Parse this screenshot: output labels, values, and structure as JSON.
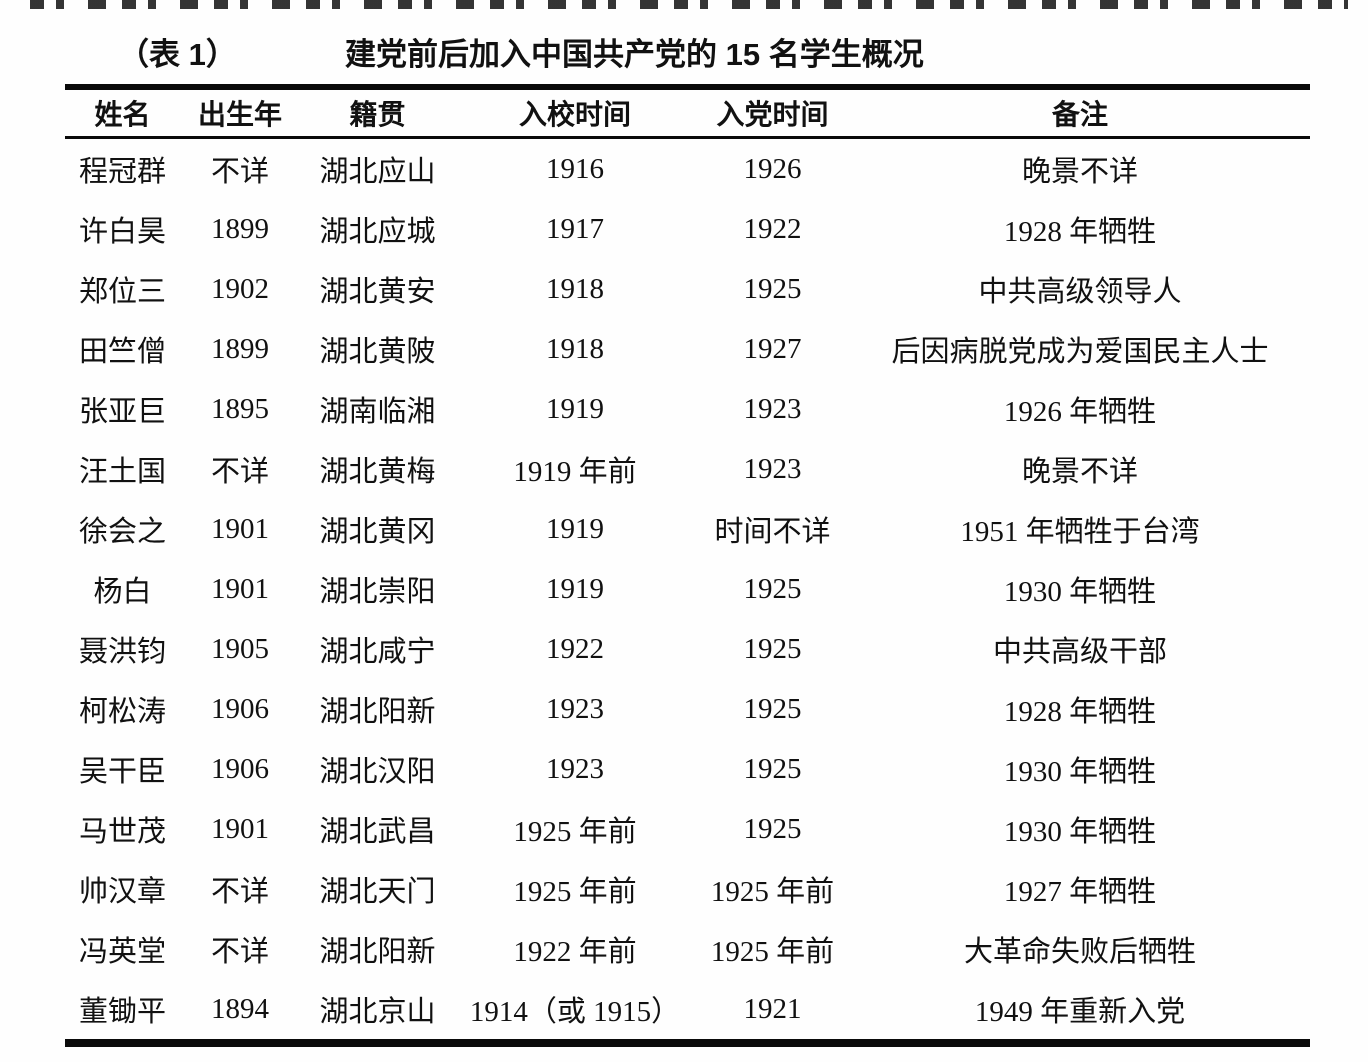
{
  "caption": {
    "label": "（表 1）",
    "title": "建党前后加入中国共产党的 15 名学生概况"
  },
  "table": {
    "columns": [
      "姓名",
      "出生年",
      "籍贯",
      "入校时间",
      "入党时间",
      "备注"
    ],
    "rows": [
      [
        "程冠群",
        "不详",
        "湖北应山",
        "1916",
        "1926",
        "晚景不详"
      ],
      [
        "许白昊",
        "1899",
        "湖北应城",
        "1917",
        "1922",
        "1928 年牺牲"
      ],
      [
        "郑位三",
        "1902",
        "湖北黄安",
        "1918",
        "1925",
        "中共高级领导人"
      ],
      [
        "田竺僧",
        "1899",
        "湖北黄陂",
        "1918",
        "1927",
        "后因病脱党成为爱国民主人士"
      ],
      [
        "张亚巨",
        "1895",
        "湖南临湘",
        "1919",
        "1923",
        "1926 年牺牲"
      ],
      [
        "汪土国",
        "不详",
        "湖北黄梅",
        "1919 年前",
        "1923",
        "晚景不详"
      ],
      [
        "徐会之",
        "1901",
        "湖北黄冈",
        "1919",
        "时间不详",
        "1951 年牺牲于台湾"
      ],
      [
        "杨白",
        "1901",
        "湖北崇阳",
        "1919",
        "1925",
        "1930 年牺牲"
      ],
      [
        "聂洪钧",
        "1905",
        "湖北咸宁",
        "1922",
        "1925",
        "中共高级干部"
      ],
      [
        "柯松涛",
        "1906",
        "湖北阳新",
        "1923",
        "1925",
        "1928 年牺牲"
      ],
      [
        "吴干臣",
        "1906",
        "湖北汉阳",
        "1923",
        "1925",
        "1930 年牺牲"
      ],
      [
        "马世茂",
        "1901",
        "湖北武昌",
        "1925 年前",
        "1925",
        "1930 年牺牲"
      ],
      [
        "帅汉章",
        "不详",
        "湖北天门",
        "1925 年前",
        "1925 年前",
        "1927 年牺牲"
      ],
      [
        "冯英堂",
        "不详",
        "湖北阳新",
        "1922 年前",
        "1925 年前",
        "大革命失败后牺牲"
      ],
      [
        "董锄平",
        "1894",
        "湖北京山",
        "1914（或 1915）",
        "1921",
        "1949 年重新入党"
      ]
    ]
  }
}
